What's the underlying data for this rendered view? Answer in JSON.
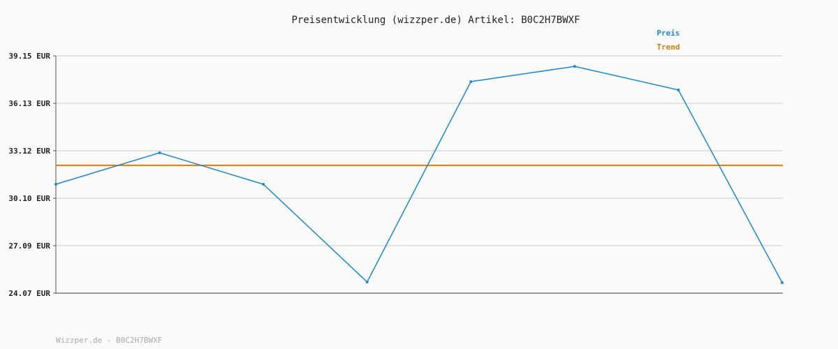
{
  "chart_data": {
    "type": "line",
    "title": "Preisentwicklung (wizzper.de) Artikel: B0C2H7BWXF",
    "xlabel": "",
    "ylabel": "",
    "ylim": [
      24.07,
      39.15
    ],
    "yticks": [
      "24.07 EUR",
      "27.09 EUR",
      "30.10 EUR",
      "33.12 EUR",
      "36.13 EUR",
      "39.15 EUR"
    ],
    "ytick_values": [
      24.07,
      27.09,
      30.1,
      33.12,
      36.13,
      39.15
    ],
    "grid": true,
    "legend_position": "top-right",
    "x": [
      1,
      2,
      3,
      4,
      5,
      6,
      7,
      8
    ],
    "series": [
      {
        "name": "Preis",
        "color": "#1a88d6",
        "values": [
          30.99,
          32.99,
          30.99,
          24.78,
          37.51,
          38.48,
          36.98,
          24.74
        ]
      },
      {
        "name": "Trend",
        "color": "#e07b00",
        "values": [
          32.19,
          32.19,
          32.19,
          32.19,
          32.19,
          32.19,
          32.19,
          32.19
        ]
      }
    ]
  },
  "footer": "Wizzper.de - B0C2H7BWXF"
}
